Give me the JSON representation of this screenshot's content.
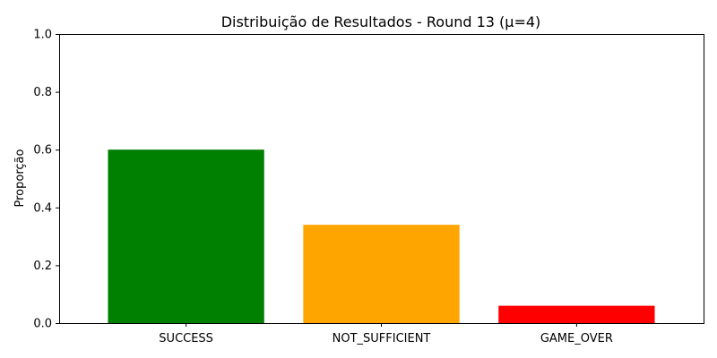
{
  "chart_data": {
    "type": "bar",
    "title": "Distribuição de Resultados - Round 13 (μ=4)",
    "xlabel": "",
    "ylabel": "Proporção",
    "categories": [
      "SUCCESS",
      "NOT_SUFFICIENT",
      "GAME_OVER"
    ],
    "values": [
      0.6,
      0.34,
      0.06
    ],
    "colors": [
      "#008000",
      "#ffa500",
      "#ff0000"
    ],
    "ylim": [
      0,
      1.0
    ],
    "yticks": [
      "0.0",
      "0.2",
      "0.4",
      "0.6",
      "0.8",
      "1.0"
    ],
    "grid": false,
    "legend": "none"
  }
}
